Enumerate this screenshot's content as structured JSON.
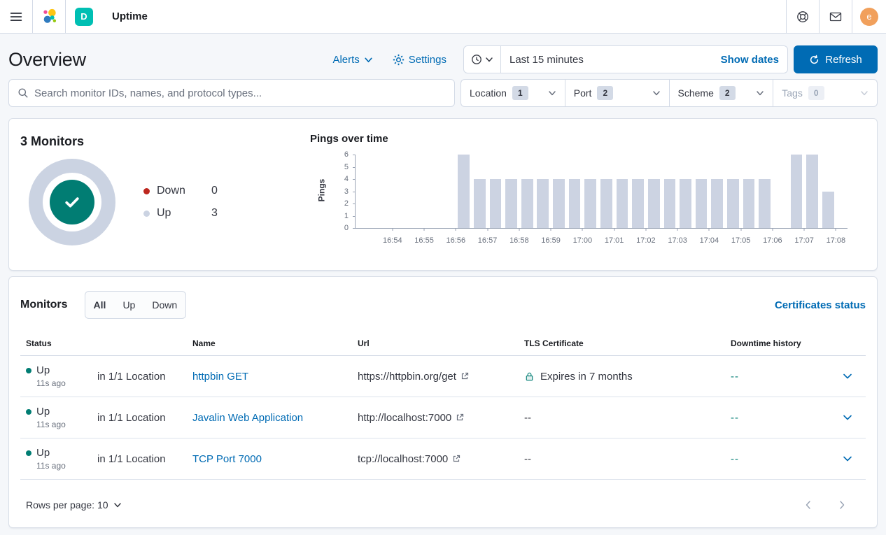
{
  "navbar": {
    "app_title": "Uptime",
    "space_initial": "D",
    "avatar_initial": "e"
  },
  "header": {
    "page_title": "Overview",
    "alerts_label": "Alerts",
    "settings_label": "Settings",
    "time_range": "Last 15 minutes",
    "show_dates_label": "Show dates",
    "refresh_label": "Refresh"
  },
  "search": {
    "placeholder": "Search monitor IDs, names, and protocol types..."
  },
  "filters": [
    {
      "label": "Location",
      "count": "1",
      "disabled": false
    },
    {
      "label": "Port",
      "count": "2",
      "disabled": false
    },
    {
      "label": "Scheme",
      "count": "2",
      "disabled": false
    },
    {
      "label": "Tags",
      "count": "0",
      "disabled": true
    }
  ],
  "snapshot": {
    "title": "3 Monitors",
    "legend": [
      {
        "label": "Down",
        "value": "0",
        "color": "#bd271e"
      },
      {
        "label": "Up",
        "value": "3",
        "color": "#cbd3e2"
      }
    ]
  },
  "chart_data": {
    "type": "bar",
    "title": "Pings over time",
    "xlabel": "",
    "ylabel": "Pings",
    "ylim": [
      0,
      6
    ],
    "yticks": [
      0,
      1,
      2,
      3,
      4,
      5,
      6
    ],
    "xticks": [
      "16:54",
      "16:55",
      "16:56",
      "16:57",
      "16:58",
      "16:59",
      "17:00",
      "17:01",
      "17:02",
      "17:03",
      "17:04",
      "17:05",
      "17:06",
      "17:07",
      "17:08"
    ],
    "x_start": "16:52:50",
    "x_end": "17:08:22",
    "bucket_seconds": 30,
    "bar_color": "#ccd3e2",
    "grid": false,
    "legend_position": "none",
    "series": [
      {
        "name": "Pings",
        "points": [
          [
            "16:56:00",
            6
          ],
          [
            "16:56:30",
            4
          ],
          [
            "16:57:00",
            4
          ],
          [
            "16:57:30",
            4
          ],
          [
            "16:58:00",
            4
          ],
          [
            "16:58:30",
            4
          ],
          [
            "16:59:00",
            4
          ],
          [
            "16:59:30",
            4
          ],
          [
            "17:00:00",
            4
          ],
          [
            "17:00:30",
            4
          ],
          [
            "17:01:00",
            4
          ],
          [
            "17:01:30",
            4
          ],
          [
            "17:02:00",
            4
          ],
          [
            "17:02:30",
            4
          ],
          [
            "17:03:00",
            4
          ],
          [
            "17:03:30",
            4
          ],
          [
            "17:04:00",
            4
          ],
          [
            "17:04:30",
            4
          ],
          [
            "17:05:00",
            4
          ],
          [
            "17:05:30",
            4
          ],
          [
            "17:06:30",
            6
          ],
          [
            "17:07:00",
            6
          ],
          [
            "17:07:30",
            3
          ]
        ]
      }
    ]
  },
  "monitors": {
    "title": "Monitors",
    "tabs": [
      "All",
      "Up",
      "Down"
    ],
    "selected_tab": "All",
    "certificates_link": "Certificates status",
    "columns": [
      "Status",
      "",
      "Name",
      "Url",
      "TLS Certificate",
      "Downtime history",
      ""
    ],
    "rows": [
      {
        "status": "Up",
        "checked": "11s ago",
        "location": "in 1/1 Location",
        "name": "httpbin GET",
        "url": "https://httpbin.org/get",
        "tls": "Expires in 7 months",
        "tls_lock": true,
        "downtime": "--"
      },
      {
        "status": "Up",
        "checked": "11s ago",
        "location": "in 1/1 Location",
        "name": "Javalin Web Application",
        "url": "http://localhost:7000",
        "tls": "--",
        "tls_lock": false,
        "downtime": "--"
      },
      {
        "status": "Up",
        "checked": "11s ago",
        "location": "in 1/1 Location",
        "name": "TCP Port 7000",
        "url": "tcp://localhost:7000",
        "tls": "--",
        "tls_lock": false,
        "downtime": "--"
      }
    ],
    "rows_per_page_label": "Rows per page: 10"
  },
  "colors": {
    "primary_blue": "#006bb4",
    "teal_success": "#017d73",
    "danger_red": "#bd271e",
    "badge_gray": "#d3dae6",
    "page_bg": "#f5f7fa"
  }
}
